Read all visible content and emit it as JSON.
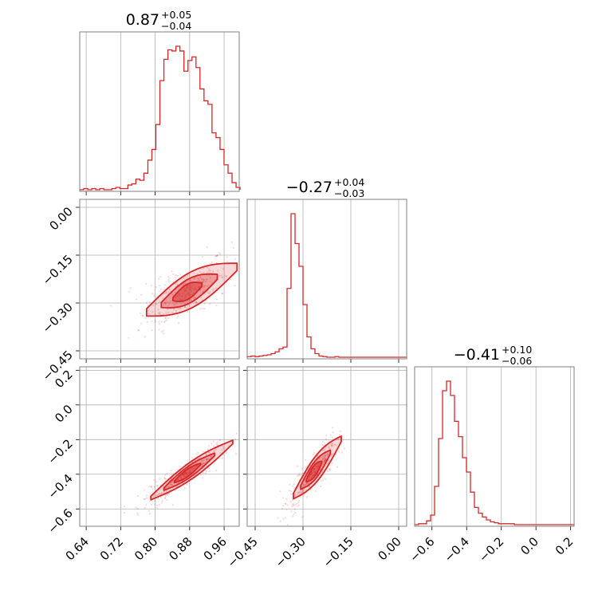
{
  "colors": {
    "accent": "#d62728",
    "grid": "#b0b0b0",
    "frame": "#808080"
  },
  "chart_data": {
    "type": "corner",
    "grid": true,
    "parameters": [
      {
        "title_value": "0.87",
        "title_plus": "+0.05",
        "title_minus": "−0.04",
        "range": [
          0.625,
          0.995
        ],
        "ticks": [
          0.64,
          0.72,
          0.8,
          0.88,
          0.96
        ],
        "tick_labels": [
          "0.64",
          "0.72",
          "0.80",
          "0.88",
          "0.96"
        ],
        "hist": {
          "start": 0.625,
          "bin_width": 0.0093,
          "counts": [
            0,
            1,
            0,
            1,
            0,
            1,
            0,
            0,
            1,
            2,
            1,
            1,
            4,
            5,
            9,
            8,
            14,
            25,
            34,
            55,
            92,
            110,
            118,
            117,
            121,
            117,
            100,
            109,
            112,
            103,
            85,
            75,
            72,
            48,
            44,
            34,
            21,
            14,
            6,
            2
          ]
        }
      },
      {
        "title_value": "−0.27",
        "title_plus": "+0.04",
        "title_minus": "−0.03",
        "range": [
          -0.475,
          0.025
        ],
        "ticks": [
          -0.45,
          -0.3,
          -0.15,
          0.0
        ],
        "tick_labels": [
          "−0.45",
          "−0.30",
          "−0.15",
          "0.00"
        ],
        "axis_ticks_left": [
          0.0,
          -0.15,
          -0.3,
          -0.45
        ],
        "axis_tick_labels_left": [
          "0.00",
          "−0.15",
          "−0.30",
          "−0.45"
        ],
        "hist": {
          "start": -0.475,
          "bin_width": 0.0125,
          "counts": [
            1,
            2,
            1,
            2,
            3,
            4,
            6,
            9,
            14,
            17,
            115,
            240,
            190,
            152,
            88,
            34,
            14,
            6,
            2,
            1,
            0,
            0,
            1,
            0,
            0,
            0,
            0,
            0,
            0,
            0,
            0,
            0,
            0,
            0,
            0,
            0,
            0,
            0,
            0,
            0
          ]
        }
      },
      {
        "title_value": "−0.41",
        "title_plus": "+0.10",
        "title_minus": "−0.06",
        "range": [
          -0.7,
          0.22
        ],
        "ticks": [
          -0.6,
          -0.4,
          -0.2,
          0.0,
          0.2
        ],
        "tick_labels": [
          "−0.6",
          "−0.4",
          "−0.2",
          "0.0",
          "0.2"
        ],
        "axis_ticks_left": [
          0.2,
          0.0,
          -0.2,
          -0.4,
          -0.6
        ],
        "axis_tick_labels_left": [
          "0.2",
          "0.0",
          "−0.2",
          "−0.4",
          "−0.6"
        ],
        "hist": {
          "start": -0.7,
          "bin_width": 0.023,
          "counts": [
            0,
            1,
            1,
            4,
            10,
            40,
            90,
            140,
            150,
            135,
            108,
            92,
            70,
            55,
            34,
            18,
            12,
            8,
            5,
            3,
            2,
            1,
            1,
            1,
            1,
            0,
            0,
            0,
            0,
            0,
            0,
            0,
            0,
            0,
            0,
            0,
            0,
            0,
            0,
            0
          ]
        }
      }
    ],
    "pairs": [
      {
        "x_param": 0,
        "y_param": 1,
        "relation": {
          "slope": 0.68,
          "intercept": -0.86,
          "spread": 0.022,
          "x_mean": 0.87,
          "x_sd": 0.045,
          "x_min": 0.78,
          "x_max": 0.99
        }
      },
      {
        "x_param": 0,
        "y_param": 2,
        "relation": {
          "slope": 1.7,
          "intercept": -1.88,
          "spread": 0.02,
          "x_mean": 0.87,
          "x_sd": 0.045,
          "x_min": 0.79,
          "x_max": 0.98
        }
      },
      {
        "x_param": 1,
        "y_param": 2,
        "relation": {
          "slope": 2.2,
          "intercept": 0.2,
          "spread": 0.03,
          "x_mean": -0.27,
          "x_sd": 0.035,
          "x_min": -0.33,
          "x_max": -0.18
        }
      }
    ]
  }
}
